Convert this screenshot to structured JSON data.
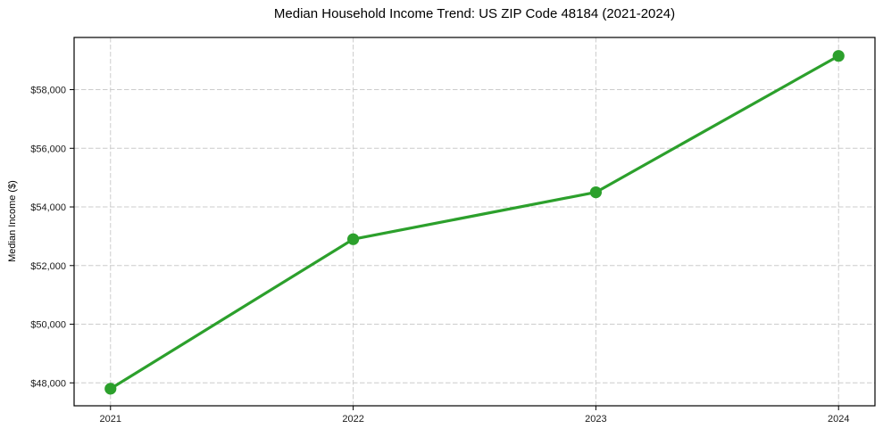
{
  "figure": {
    "background": "#ffffff"
  },
  "chart_data": {
    "type": "line",
    "title": "Median Household Income Trend: US ZIP Code 48184 (2021-2024)",
    "xlabel": "",
    "ylabel": "Median Income ($)",
    "x": [
      2021,
      2022,
      2023,
      2024
    ],
    "x_tick_labels": [
      "2021",
      "2022",
      "2023",
      "2024"
    ],
    "y_ticks": [
      48000,
      50000,
      52000,
      54000,
      56000,
      58000
    ],
    "y_tick_labels": [
      "$48,000",
      "$50,000",
      "$52,000",
      "$54,000",
      "$56,000",
      "$58,000"
    ],
    "values": [
      47800,
      52900,
      54500,
      59150
    ],
    "xlim": [
      2020.85,
      2024.15
    ],
    "ylim": [
      47218,
      59780
    ],
    "grid": true,
    "grid_style": "dashed",
    "legend_position": "none",
    "line_color": "#2ca02c",
    "marker": "circle",
    "grid_color": "#cccccc",
    "axis_color": "#000000",
    "tick_label_color": "#1a1a1a",
    "background_color": "#ffffff"
  }
}
